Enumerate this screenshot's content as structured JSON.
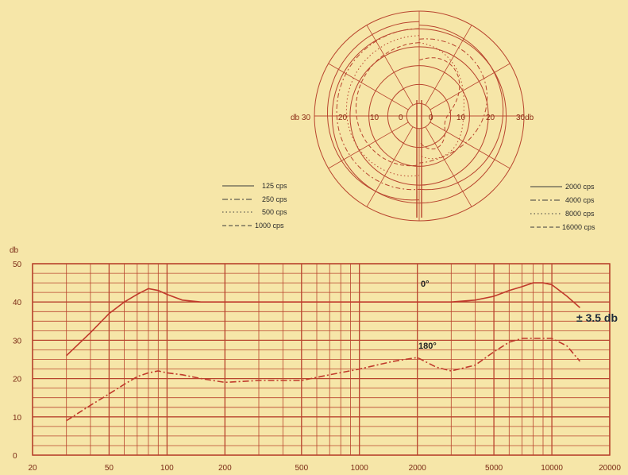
{
  "chart_data": [
    {
      "type": "polar",
      "angular_gridlines_deg": 30,
      "radial_ticks_db": [
        0,
        10,
        20,
        30
      ],
      "labels": {
        "left_outer": "db 30",
        "left_20": "20",
        "left_10": "10",
        "left_0": "0",
        "right_0": "0",
        "right_10": "10",
        "right_20": "20",
        "right_outer": "30db"
      },
      "legend_left": [
        {
          "label": "125 cps",
          "style": "solid"
        },
        {
          "label": "250 cps",
          "style": "dashdot"
        },
        {
          "label": "500 cps",
          "style": "dotted"
        },
        {
          "label": "1000 cps",
          "style": "dashed"
        }
      ],
      "legend_right": [
        {
          "label": "2000 cps",
          "style": "solid"
        },
        {
          "label": "4000 cps",
          "style": "dashdot"
        },
        {
          "label": "8000 cps",
          "style": "dotted"
        },
        {
          "label": "16000 cps",
          "style": "dashed"
        }
      ]
    },
    {
      "type": "line",
      "ylabel": "db",
      "xscale": "log",
      "xlim": [
        20,
        20000
      ],
      "ylim": [
        0,
        50
      ],
      "x_ticks": [
        {
          "value": 20,
          "label": "20"
        },
        {
          "value": 50,
          "label": "50"
        },
        {
          "value": 100,
          "label": "100"
        },
        {
          "value": 200,
          "label": "200"
        },
        {
          "value": 500,
          "label": "500"
        },
        {
          "value": 1000,
          "label": "1000"
        },
        {
          "value": 2000,
          "label": "2000"
        },
        {
          "value": 5000,
          "label": "5000"
        },
        {
          "value": 10000,
          "label": "10000"
        },
        {
          "value": 20000,
          "label": "20000"
        }
      ],
      "y_ticks": [
        0,
        10,
        20,
        30,
        40,
        50
      ],
      "grid": true,
      "annotations": {
        "curve_0": "0°",
        "curve_180": "180°",
        "tolerance": "± 3.5 db"
      },
      "series": [
        {
          "name": "0°",
          "style": "solid",
          "x": [
            30,
            40,
            50,
            60,
            70,
            80,
            90,
            100,
            120,
            150,
            200,
            300,
            500,
            700,
            1000,
            1500,
            2000,
            3000,
            4000,
            5000,
            6000,
            7000,
            8000,
            9000,
            10000,
            12000,
            14000
          ],
          "y": [
            26,
            32,
            37,
            40,
            42,
            43.5,
            43,
            42,
            40.5,
            40,
            40,
            40,
            40,
            40,
            40,
            40,
            40,
            40,
            40.5,
            41.5,
            43,
            44,
            45,
            45,
            44.5,
            41.5,
            38.5
          ]
        },
        {
          "name": "180°",
          "style": "dashdot",
          "x": [
            30,
            40,
            50,
            60,
            70,
            80,
            90,
            100,
            120,
            150,
            200,
            300,
            400,
            500,
            700,
            1000,
            1500,
            2000,
            2500,
            3000,
            4000,
            5000,
            6000,
            7000,
            8000,
            9000,
            10000,
            12000,
            14000
          ],
          "y": [
            9,
            13,
            16,
            18.5,
            20.5,
            21.5,
            22,
            21.5,
            21,
            20,
            19,
            19.5,
            19.5,
            19.5,
            21,
            22.5,
            24.5,
            25.5,
            23,
            22,
            23.5,
            27,
            29.5,
            30.5,
            30.5,
            30.5,
            30.5,
            28.5,
            24.5
          ]
        }
      ]
    }
  ]
}
